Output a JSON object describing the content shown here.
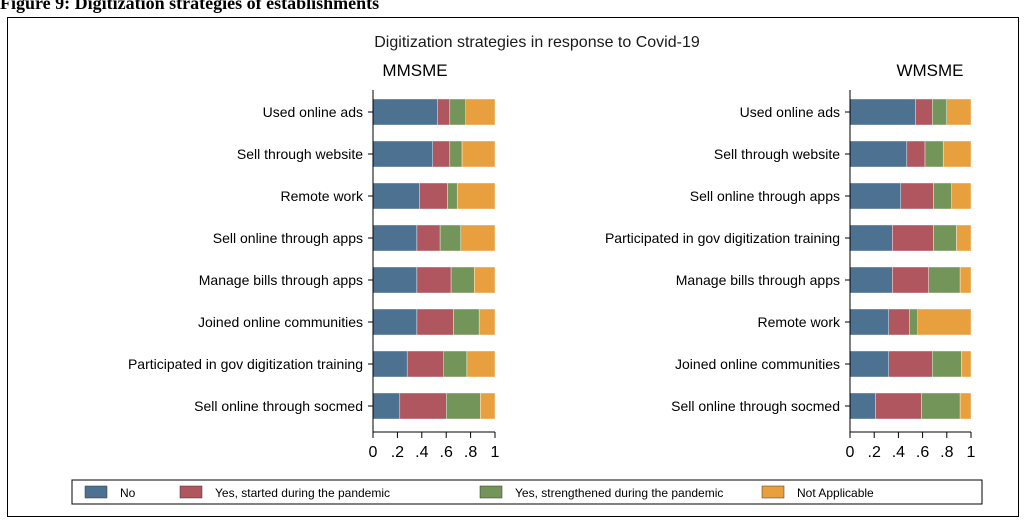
{
  "figure_title": "Figure 9: Digitization strategies of establishments",
  "colors": {
    "No": "#4c7191",
    "Yes, started during the pandemic": "#b0565f",
    "Yes, strengthened during the pandemic": "#74955a",
    "Not Applicable": "#e7a03d"
  },
  "chart_data": {
    "type": "bar",
    "orientation": "horizontal",
    "stacked": true,
    "title": "Digitization strategies in response to Covid-19",
    "legend_position": "bottom",
    "grid": false,
    "legend": [
      "No",
      "Yes, started during the pandemic",
      "Yes, strengthened during the pandemic",
      "Not Applicable"
    ],
    "panels": [
      {
        "name": "MMSME",
        "xlim": [
          0,
          1
        ],
        "ticks": [
          0,
          0.2,
          0.4,
          0.6,
          0.8,
          1
        ],
        "tick_labels": [
          "0",
          ".2",
          ".4",
          ".6",
          ".8",
          "1"
        ],
        "categories": [
          "Used online ads",
          "Sell through website",
          "Remote work",
          "Sell online through apps",
          "Manage bills through apps",
          "Joined online communities",
          "Participated in gov digitization training",
          "Sell online through socmed"
        ],
        "series": [
          {
            "name": "No",
            "values": [
              0.53,
              0.49,
              0.38,
              0.36,
              0.36,
              0.36,
              0.28,
              0.22
            ]
          },
          {
            "name": "Yes, started during the pandemic",
            "values": [
              0.1,
              0.14,
              0.23,
              0.19,
              0.28,
              0.3,
              0.3,
              0.38
            ]
          },
          {
            "name": "Yes, strengthened during the pandemic",
            "values": [
              0.13,
              0.1,
              0.08,
              0.17,
              0.19,
              0.21,
              0.19,
              0.28
            ]
          },
          {
            "name": "Not Applicable",
            "values": [
              0.24,
              0.27,
              0.31,
              0.28,
              0.17,
              0.13,
              0.23,
              0.12
            ]
          }
        ]
      },
      {
        "name": "WMSME",
        "xlim": [
          0,
          1
        ],
        "ticks": [
          0,
          0.2,
          0.4,
          0.6,
          0.8,
          1
        ],
        "tick_labels": [
          "0",
          ".2",
          ".4",
          ".6",
          ".8",
          "1"
        ],
        "categories": [
          "Used online ads",
          "Sell through website",
          "Sell online through apps",
          "Participated in gov digitization training",
          "Manage bills through apps",
          "Remote work",
          "Joined online communities",
          "Sell online through socmed"
        ],
        "series": [
          {
            "name": "No",
            "values": [
              0.54,
              0.47,
              0.42,
              0.35,
              0.35,
              0.32,
              0.32,
              0.21
            ]
          },
          {
            "name": "Yes, started during the pandemic",
            "values": [
              0.14,
              0.15,
              0.27,
              0.34,
              0.3,
              0.17,
              0.36,
              0.38
            ]
          },
          {
            "name": "Yes, strengthened during the pandemic",
            "values": [
              0.12,
              0.15,
              0.15,
              0.19,
              0.26,
              0.07,
              0.24,
              0.32
            ]
          },
          {
            "name": "Not Applicable",
            "values": [
              0.2,
              0.23,
              0.16,
              0.12,
              0.09,
              0.44,
              0.08,
              0.09
            ]
          }
        ]
      }
    ]
  }
}
